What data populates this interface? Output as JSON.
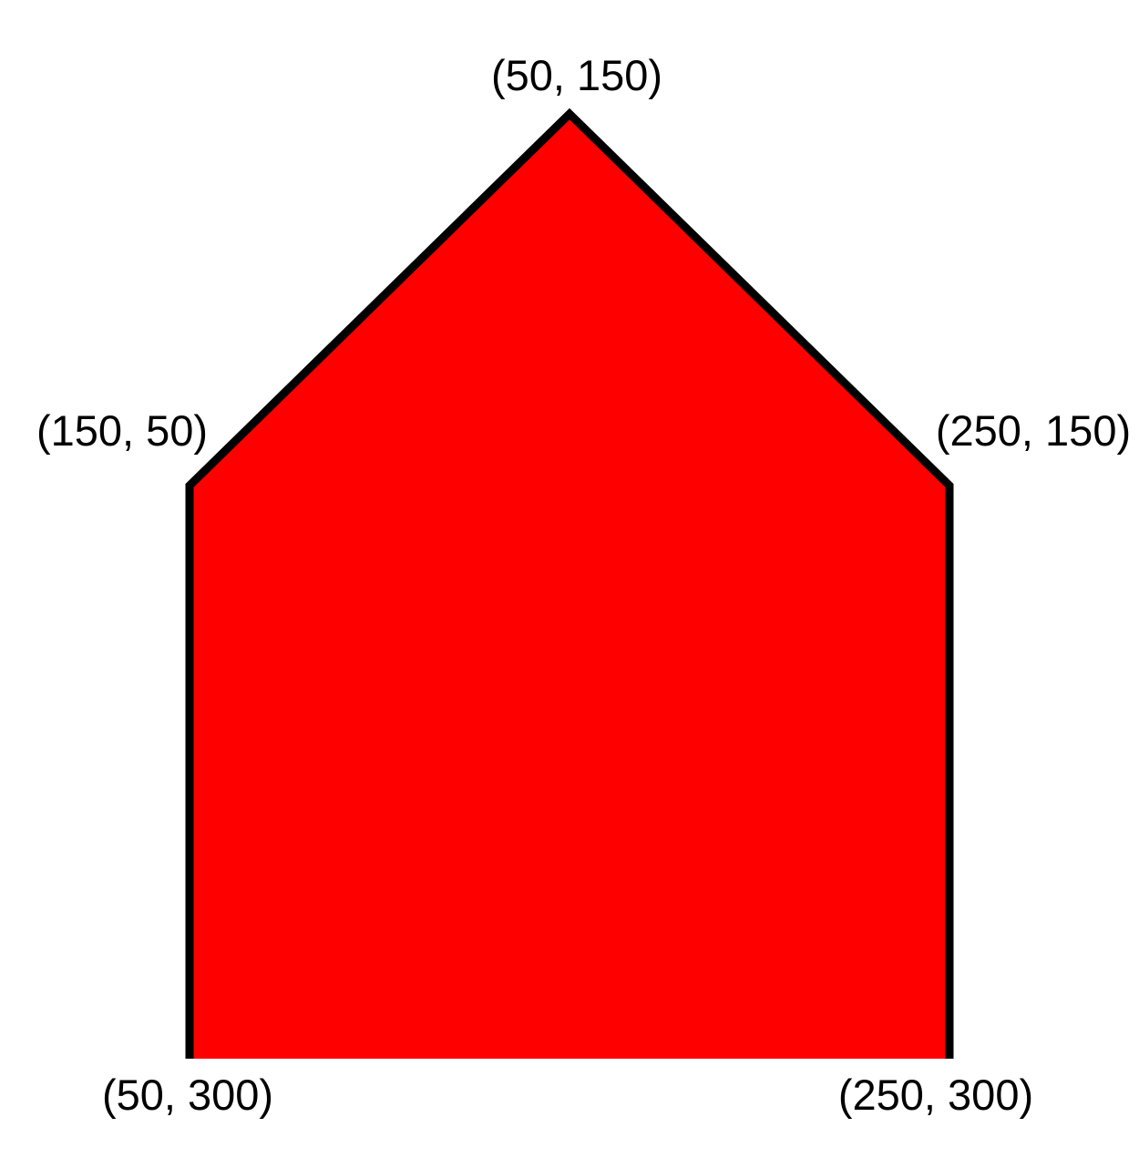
{
  "shape": {
    "fill": "#ff0000",
    "stroke": "#000000"
  },
  "labels": {
    "apex": "(50, 150)",
    "upper_left": "(150, 50)",
    "upper_right": "(250, 150)",
    "lower_left": "(50, 300)",
    "lower_right": "(250, 300)"
  }
}
